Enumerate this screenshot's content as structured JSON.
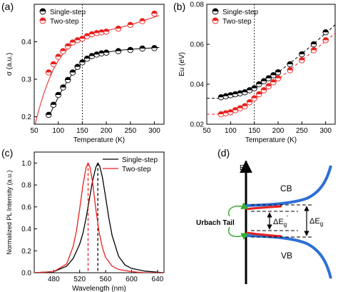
{
  "panels": {
    "a": {
      "letter": "(a)"
    },
    "b": {
      "letter": "(b)"
    },
    "c": {
      "letter": "(c)"
    },
    "d": {
      "letter": "(d)"
    }
  },
  "chart_data": [
    {
      "id": "a",
      "type": "scatter",
      "xlabel": "Temperature (K)",
      "ylabel": "σ (a.u.)",
      "xlim": [
        50,
        320
      ],
      "ylim": [
        0.18,
        0.5
      ],
      "xticks": [
        50,
        100,
        150,
        200,
        250,
        300
      ],
      "yticks": [
        0.2,
        0.3,
        0.4
      ],
      "ytick_labels": [
        "0.2",
        "0.3",
        "0.4"
      ],
      "legend": "top-left",
      "vline_x": 150,
      "series": [
        {
          "name": "Single-step",
          "color": "#000000",
          "x": [
            80,
            90,
            100,
            110,
            120,
            130,
            140,
            150,
            160,
            170,
            180,
            190,
            200,
            225,
            250,
            275,
            300
          ],
          "y": [
            0.205,
            0.232,
            0.258,
            0.278,
            0.298,
            0.318,
            0.333,
            0.345,
            0.355,
            0.362,
            0.366,
            0.369,
            0.371,
            0.375,
            0.378,
            0.382,
            0.383
          ]
        },
        {
          "name": "Two-step",
          "color": "#e8201e",
          "x": [
            80,
            90,
            100,
            110,
            120,
            130,
            140,
            150,
            160,
            170,
            180,
            190,
            200,
            225,
            250,
            275,
            300
          ],
          "y": [
            0.318,
            0.34,
            0.36,
            0.375,
            0.388,
            0.398,
            0.404,
            0.408,
            0.415,
            0.42,
            0.423,
            0.425,
            0.427,
            0.435,
            0.445,
            0.455,
            0.475
          ]
        }
      ],
      "fits": [
        {
          "color": "#000000",
          "x": [
            80,
            90,
            100,
            110,
            120,
            130,
            140,
            150,
            160,
            170,
            180,
            190,
            200,
            225,
            250,
            275,
            300,
            310
          ],
          "y": [
            0.2,
            0.226,
            0.252,
            0.276,
            0.297,
            0.315,
            0.331,
            0.344,
            0.353,
            0.36,
            0.365,
            0.369,
            0.372,
            0.377,
            0.38,
            0.382,
            0.384,
            0.385
          ]
        },
        {
          "color": "#e8201e",
          "x": [
            52,
            60,
            70,
            80,
            90,
            100,
            110,
            120,
            130,
            140,
            150,
            160,
            170,
            180,
            190,
            200,
            225,
            250,
            275,
            300,
            310
          ],
          "y": [
            0.18,
            0.22,
            0.262,
            0.297,
            0.327,
            0.35,
            0.368,
            0.382,
            0.393,
            0.401,
            0.408,
            0.413,
            0.418,
            0.422,
            0.426,
            0.43,
            0.437,
            0.445,
            0.455,
            0.466,
            0.47
          ]
        }
      ]
    },
    {
      "id": "b",
      "type": "scatter",
      "xlabel": "Temperature (K)",
      "ylabel": "Eu (eV)",
      "xlim": [
        50,
        320
      ],
      "ylim": [
        0.02,
        0.08
      ],
      "xticks": [
        50,
        100,
        150,
        200,
        250,
        300
      ],
      "yticks": [
        0.02,
        0.04,
        0.06,
        0.08
      ],
      "ytick_labels": [
        "0.02",
        "0.04",
        "0.06",
        "0.08"
      ],
      "legend": "top-left",
      "vline_x": 150,
      "series": [
        {
          "name": "Single-step",
          "color": "#000000",
          "x": [
            80,
            90,
            100,
            110,
            120,
            130,
            140,
            150,
            160,
            170,
            180,
            190,
            200,
            225,
            250,
            275,
            300
          ],
          "y": [
            0.0335,
            0.034,
            0.0345,
            0.035,
            0.0355,
            0.036,
            0.037,
            0.038,
            0.04,
            0.0415,
            0.043,
            0.0445,
            0.046,
            0.05,
            0.055,
            0.06,
            0.066
          ]
        },
        {
          "name": "Two-step",
          "color": "#e8201e",
          "x": [
            80,
            90,
            100,
            110,
            120,
            130,
            140,
            150,
            160,
            170,
            180,
            190,
            200,
            225,
            250,
            275,
            300
          ],
          "y": [
            0.025,
            0.0255,
            0.026,
            0.027,
            0.028,
            0.029,
            0.031,
            0.033,
            0.035,
            0.037,
            0.039,
            0.041,
            0.043,
            0.047,
            0.052,
            0.057,
            0.062
          ]
        }
      ],
      "fits": [
        {
          "color": "#000000",
          "dashed": true,
          "x": [
            50,
            80,
            100,
            120,
            140,
            150,
            160,
            180,
            200,
            225,
            250,
            275,
            300,
            320
          ],
          "y": [
            0.033,
            0.033,
            0.0335,
            0.0345,
            0.0365,
            0.0378,
            0.0392,
            0.0425,
            0.046,
            0.0505,
            0.0553,
            0.0603,
            0.0655,
            0.0698
          ]
        },
        {
          "color": "#e8201e",
          "dashed": true,
          "x": [
            50,
            80,
            100,
            120,
            140,
            150,
            160,
            180,
            200,
            225,
            250,
            275,
            300,
            320
          ],
          "y": [
            0.025,
            0.025,
            0.0255,
            0.0272,
            0.0306,
            0.0325,
            0.0345,
            0.0385,
            0.0425,
            0.0473,
            0.052,
            0.0568,
            0.0616,
            0.0655
          ]
        }
      ]
    },
    {
      "id": "c",
      "type": "line",
      "xlabel": "Wavelength (nm)",
      "ylabel": "Normalized PL Intensity (a.u.)",
      "xlim": [
        450,
        650
      ],
      "ylim": [
        0.0,
        1.1
      ],
      "xticks": [
        480,
        520,
        560,
        600,
        640
      ],
      "yticks": [
        0.0,
        0.2,
        0.4,
        0.6,
        0.8,
        1.0
      ],
      "ytick_labels": [
        "0.0",
        "0.2",
        "0.4",
        "0.6",
        "0.8",
        "1.0"
      ],
      "legend": "top-right",
      "series": [
        {
          "name": "Single-step",
          "color": "#000000",
          "peak": 548,
          "x": [
            450,
            480,
            500,
            510,
            520,
            525,
            530,
            535,
            540,
            545,
            548,
            551,
            555,
            560,
            565,
            570,
            580,
            590,
            600,
            620,
            650
          ],
          "y": [
            0.0,
            0.01,
            0.06,
            0.13,
            0.26,
            0.36,
            0.5,
            0.67,
            0.84,
            0.96,
            1.0,
            0.97,
            0.87,
            0.69,
            0.5,
            0.34,
            0.15,
            0.07,
            0.04,
            0.015,
            0.0
          ]
        },
        {
          "name": "Two-step",
          "color": "#e8201e",
          "peak": 533,
          "x": [
            450,
            480,
            500,
            510,
            515,
            520,
            525,
            530,
            533,
            536,
            540,
            545,
            550,
            555,
            560,
            570,
            580,
            600,
            620,
            650
          ],
          "y": [
            0.0,
            0.01,
            0.08,
            0.24,
            0.38,
            0.58,
            0.8,
            0.96,
            1.0,
            0.96,
            0.82,
            0.58,
            0.37,
            0.23,
            0.14,
            0.06,
            0.03,
            0.01,
            0.0,
            0.0
          ]
        }
      ]
    }
  ],
  "diagram_d": {
    "axis_label": "E",
    "cb_label": "CB",
    "vb_label": "VB",
    "urbach_label": "Urbach Tail",
    "de_g_prime_label": "ΔE",
    "de_g_prime_sub": "g",
    "de_g_prime_sup": "'",
    "de_g_label": "ΔE",
    "de_g_sub": "g",
    "band_color": "#2d6fd6",
    "tail_color": "#e8201e",
    "arrow_color": "#3aaa35"
  }
}
